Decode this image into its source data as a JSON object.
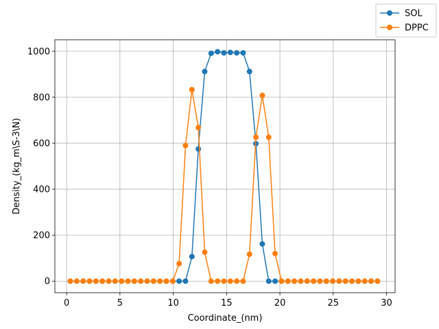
{
  "chart_data": {
    "type": "line",
    "xlabel": "Coordinate_(nm)",
    "ylabel": "Density_(kg_m\\S-3\\N)",
    "xlim": [
      -1.1,
      30.8
    ],
    "ylim": [
      -50,
      1050
    ],
    "xticks": [
      0,
      5,
      10,
      15,
      20,
      25,
      30
    ],
    "yticks": [
      0,
      200,
      400,
      600,
      800,
      1000
    ],
    "grid": true,
    "legend_position": "top-right",
    "x": [
      0.35,
      0.95,
      1.55,
      2.15,
      2.75,
      3.35,
      3.95,
      4.55,
      5.15,
      5.75,
      6.35,
      6.95,
      7.55,
      8.15,
      8.75,
      9.35,
      9.95,
      10.55,
      11.15,
      11.75,
      12.35,
      12.95,
      13.55,
      14.15,
      14.75,
      15.35,
      15.95,
      16.55,
      17.15,
      17.75,
      18.35,
      18.95,
      19.55,
      20.15,
      20.75,
      21.35,
      21.95,
      22.55,
      23.15,
      23.75,
      24.35,
      24.95,
      25.55,
      26.15,
      26.75,
      27.35,
      27.95,
      28.55,
      29.15
    ],
    "series": [
      {
        "name": "SOL",
        "color": "#1f77b4",
        "values": [
          0,
          0,
          0,
          0,
          0,
          0,
          0,
          0,
          0,
          0,
          0,
          0,
          0,
          0,
          0,
          0,
          0,
          0,
          0,
          107,
          575,
          912,
          991,
          998,
          993,
          995,
          993,
          993,
          912,
          598,
          162,
          0,
          0,
          0,
          0,
          0,
          0,
          0,
          0,
          0,
          0,
          0,
          0,
          0,
          0,
          0,
          0,
          0,
          0
        ]
      },
      {
        "name": "DPPC",
        "color": "#ff7f0e",
        "values": [
          0,
          0,
          0,
          0,
          0,
          0,
          0,
          0,
          0,
          0,
          0,
          0,
          0,
          0,
          0,
          0,
          0,
          76,
          590,
          833,
          668,
          126,
          0,
          0,
          0,
          0,
          0,
          0,
          117,
          626,
          808,
          626,
          120,
          0,
          0,
          0,
          0,
          0,
          0,
          0,
          0,
          0,
          0,
          0,
          0,
          0,
          0,
          0,
          0
        ]
      }
    ]
  }
}
